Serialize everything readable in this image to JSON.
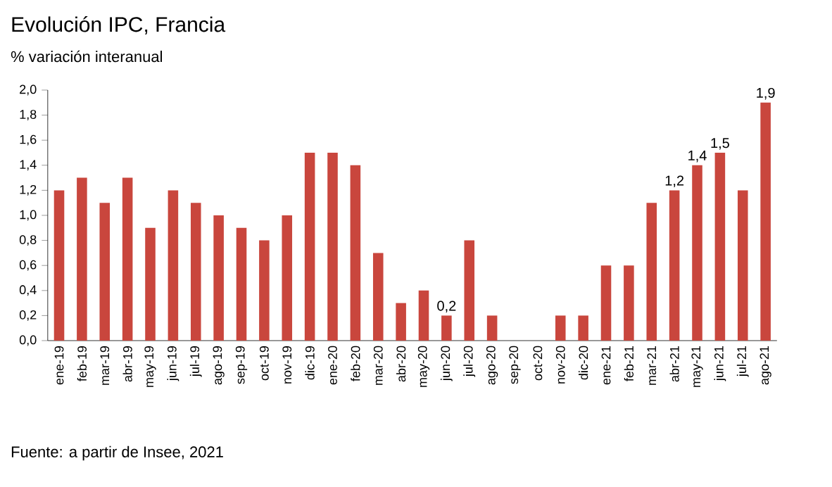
{
  "chart_data": {
    "type": "bar",
    "title": "Evolución IPC, Francia",
    "subtitle": "% variación interanual",
    "categories": [
      "ene-19",
      "feb-19",
      "mar-19",
      "abr-19",
      "may-19",
      "jun-19",
      "jul-19",
      "ago-19",
      "sep-19",
      "oct-19",
      "nov-19",
      "dic-19",
      "ene-20",
      "feb-20",
      "mar-20",
      "abr-20",
      "may-20",
      "jun-20",
      "jul-20",
      "ago-20",
      "sep-20",
      "oct-20",
      "nov-20",
      "dic-20",
      "ene-21",
      "feb-21",
      "mar-21",
      "abr-21",
      "may-21",
      "jun-21",
      "jul-21",
      "ago-21"
    ],
    "values": [
      1.2,
      1.3,
      1.1,
      1.3,
      0.9,
      1.2,
      1.1,
      1.0,
      0.9,
      0.8,
      1.0,
      1.5,
      1.5,
      1.4,
      0.7,
      0.3,
      0.4,
      0.2,
      0.8,
      0.2,
      0,
      0,
      0.2,
      0.2,
      0.6,
      0.6,
      1.1,
      1.2,
      1.4,
      1.5,
      1.2,
      1.9
    ],
    "value_labels": [
      null,
      null,
      null,
      null,
      null,
      null,
      null,
      null,
      null,
      null,
      null,
      null,
      null,
      null,
      null,
      null,
      null,
      "0,2",
      null,
      null,
      null,
      null,
      null,
      null,
      null,
      null,
      null,
      "1,2",
      "1,4",
      "1,5",
      null,
      "1,9"
    ],
    "color": "#c9463d",
    "ylim": [
      0,
      2.0
    ],
    "yticks": [
      {
        "value": 0,
        "label": "0,0"
      },
      {
        "value": 0.2,
        "label": "0,2"
      },
      {
        "value": 0.4,
        "label": "0,4"
      },
      {
        "value": 0.6,
        "label": "0,6"
      },
      {
        "value": 0.8,
        "label": "0,8"
      },
      {
        "value": 1.0,
        "label": "1,0"
      },
      {
        "value": 1.2,
        "label": "1,2"
      },
      {
        "value": 1.4,
        "label": "1,4"
      },
      {
        "value": 1.6,
        "label": "1,6"
      },
      {
        "value": 1.8,
        "label": "1,8"
      },
      {
        "value": 2.0,
        "label": "2,0"
      }
    ],
    "grid": false,
    "annotations": [
      "Fuente: a partir de Insee, 2021"
    ]
  }
}
